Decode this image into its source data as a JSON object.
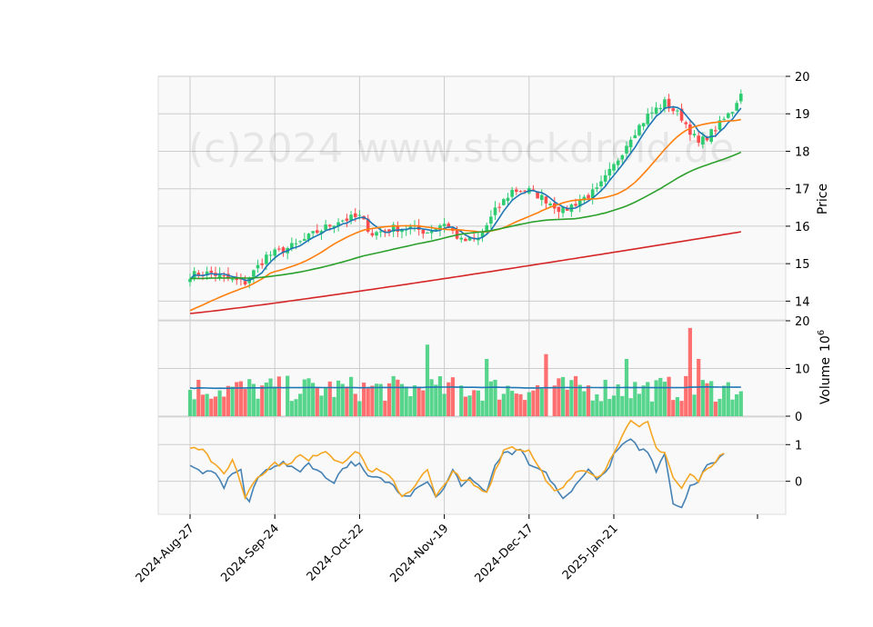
{
  "chart_data": {
    "type": "candlestick",
    "watermark": "(c)2024 www.stockdroid.de",
    "x_ticks": [
      "2024-Aug-27",
      "2024-Sep-24",
      "2024-Oct-22",
      "2024-Nov-19",
      "2024-Dec-17",
      "2025-Jan-21"
    ],
    "price_panel": {
      "ylabel": "Price",
      "ylim": [
        13.5,
        20.0
      ],
      "yticks": [
        14,
        15,
        16,
        17,
        18,
        19,
        20
      ],
      "anchors": [
        [
          0,
          14.7
        ],
        [
          5,
          14.75
        ],
        [
          10,
          14.55
        ],
        [
          13,
          14.5
        ],
        [
          18,
          15.2
        ],
        [
          25,
          15.5
        ],
        [
          30,
          15.85
        ],
        [
          35,
          16.15
        ],
        [
          40,
          16.25
        ],
        [
          43,
          15.8
        ],
        [
          48,
          15.95
        ],
        [
          52,
          15.95
        ],
        [
          56,
          15.85
        ],
        [
          60,
          16.1
        ],
        [
          64,
          15.6
        ],
        [
          68,
          15.65
        ],
        [
          72,
          16.4
        ],
        [
          76,
          16.95
        ],
        [
          80,
          16.95
        ],
        [
          84,
          16.7
        ],
        [
          88,
          16.4
        ],
        [
          92,
          16.7
        ],
        [
          96,
          16.95
        ],
        [
          100,
          17.6
        ],
        [
          104,
          18.4
        ],
        [
          108,
          18.95
        ],
        [
          112,
          19.3
        ],
        [
          116,
          18.9
        ],
        [
          120,
          18.2
        ],
        [
          124,
          18.6
        ],
        [
          128,
          19.1
        ],
        [
          130,
          19.6
        ]
      ],
      "ma_lines": [
        {
          "color": "#1f77b4",
          "window": 5
        },
        {
          "color": "#ff7f0e",
          "window": 20
        },
        {
          "color": "#2ca02c",
          "window": 50
        },
        {
          "color": "#d62728",
          "window": 200
        }
      ],
      "ma_start_values": {
        "ma50": 14.6,
        "ma200_start": 13.67,
        "ma200_end": 15.85
      }
    },
    "volume_panel": {
      "ylabel": "Volume",
      "multiplier": "10",
      "exponent": "6",
      "ylim": [
        0,
        20
      ],
      "yticks": [
        0,
        10,
        20
      ],
      "average": 6.0,
      "up_color": "#2ecc71",
      "down_color": "#ff4d4d"
    },
    "oscillator_panel": {
      "ylim": [
        -0.9,
        1.75
      ],
      "yticks": [
        0,
        1
      ],
      "series": [
        {
          "color": "#4682b4",
          "anchors": [
            [
              0,
              0.4
            ],
            [
              3,
              0.25
            ],
            [
              6,
              0.2
            ],
            [
              8,
              -0.15
            ],
            [
              10,
              0.25
            ],
            [
              12,
              0.3
            ],
            [
              13,
              -0.4
            ],
            [
              14,
              -0.55
            ],
            [
              16,
              0.1
            ],
            [
              18,
              0.3
            ],
            [
              20,
              0.45
            ],
            [
              22,
              0.5
            ],
            [
              24,
              0.35
            ],
            [
              26,
              0.3
            ],
            [
              28,
              0.5
            ],
            [
              30,
              0.3
            ],
            [
              32,
              0.1
            ],
            [
              34,
              0.0
            ],
            [
              36,
              0.35
            ],
            [
              38,
              0.5
            ],
            [
              40,
              0.45
            ],
            [
              42,
              0.1
            ],
            [
              44,
              0.1
            ],
            [
              46,
              0.0
            ],
            [
              48,
              -0.1
            ],
            [
              50,
              -0.35
            ],
            [
              52,
              -0.35
            ],
            [
              54,
              -0.1
            ],
            [
              56,
              0.0
            ],
            [
              58,
              -0.4
            ],
            [
              60,
              -0.2
            ],
            [
              62,
              0.3
            ],
            [
              64,
              -0.1
            ],
            [
              66,
              0.1
            ],
            [
              68,
              -0.1
            ],
            [
              70,
              -0.3
            ],
            [
              72,
              0.4
            ],
            [
              74,
              0.8
            ],
            [
              76,
              0.7
            ],
            [
              78,
              0.9
            ],
            [
              80,
              0.4
            ],
            [
              82,
              0.35
            ],
            [
              84,
              0.2
            ],
            [
              86,
              -0.1
            ],
            [
              88,
              -0.5
            ],
            [
              90,
              -0.3
            ],
            [
              92,
              0.1
            ],
            [
              94,
              0.3
            ],
            [
              96,
              0.1
            ],
            [
              98,
              0.2
            ],
            [
              100,
              0.7
            ],
            [
              102,
              1.0
            ],
            [
              104,
              1.1
            ],
            [
              106,
              0.9
            ],
            [
              108,
              0.8
            ],
            [
              110,
              0.3
            ],
            [
              112,
              0.8
            ],
            [
              114,
              -0.6
            ],
            [
              116,
              -0.7
            ],
            [
              118,
              -0.1
            ],
            [
              120,
              -0.05
            ],
            [
              122,
              0.5
            ],
            [
              124,
              0.5
            ],
            [
              126,
              0.8
            ]
          ]
        },
        {
          "color": "#f5a623",
          "anchors": [
            [
              0,
              0.95
            ],
            [
              3,
              0.9
            ],
            [
              6,
              0.4
            ],
            [
              8,
              0.2
            ],
            [
              10,
              0.6
            ],
            [
              12,
              -0.05
            ],
            [
              13,
              -0.45
            ],
            [
              14,
              -0.2
            ],
            [
              16,
              0.15
            ],
            [
              18,
              0.3
            ],
            [
              20,
              0.5
            ],
            [
              22,
              0.45
            ],
            [
              24,
              0.55
            ],
            [
              26,
              0.7
            ],
            [
              28,
              0.55
            ],
            [
              30,
              0.75
            ],
            [
              32,
              0.85
            ],
            [
              34,
              0.6
            ],
            [
              36,
              0.55
            ],
            [
              38,
              0.7
            ],
            [
              40,
              0.8
            ],
            [
              42,
              0.3
            ],
            [
              44,
              0.3
            ],
            [
              46,
              0.2
            ],
            [
              48,
              0.0
            ],
            [
              50,
              -0.4
            ],
            [
              52,
              -0.25
            ],
            [
              54,
              0.05
            ],
            [
              56,
              0.3
            ],
            [
              58,
              -0.45
            ],
            [
              60,
              -0.1
            ],
            [
              62,
              0.3
            ],
            [
              64,
              0.0
            ],
            [
              66,
              0.0
            ],
            [
              68,
              -0.2
            ],
            [
              70,
              -0.3
            ],
            [
              72,
              0.3
            ],
            [
              74,
              0.85
            ],
            [
              76,
              0.95
            ],
            [
              78,
              0.85
            ],
            [
              80,
              0.85
            ],
            [
              82,
              0.5
            ],
            [
              84,
              0.0
            ],
            [
              86,
              -0.3
            ],
            [
              88,
              -0.2
            ],
            [
              90,
              0.1
            ],
            [
              92,
              0.3
            ],
            [
              94,
              0.3
            ],
            [
              96,
              0.15
            ],
            [
              98,
              0.3
            ],
            [
              100,
              0.8
            ],
            [
              102,
              1.3
            ],
            [
              104,
              1.6
            ],
            [
              106,
              1.45
            ],
            [
              108,
              1.6
            ],
            [
              110,
              0.9
            ],
            [
              112,
              0.8
            ],
            [
              114,
              0.1
            ],
            [
              116,
              -0.2
            ],
            [
              118,
              0.2
            ],
            [
              120,
              0.0
            ],
            [
              122,
              0.4
            ],
            [
              124,
              0.5
            ],
            [
              126,
              0.8
            ]
          ]
        }
      ]
    }
  }
}
